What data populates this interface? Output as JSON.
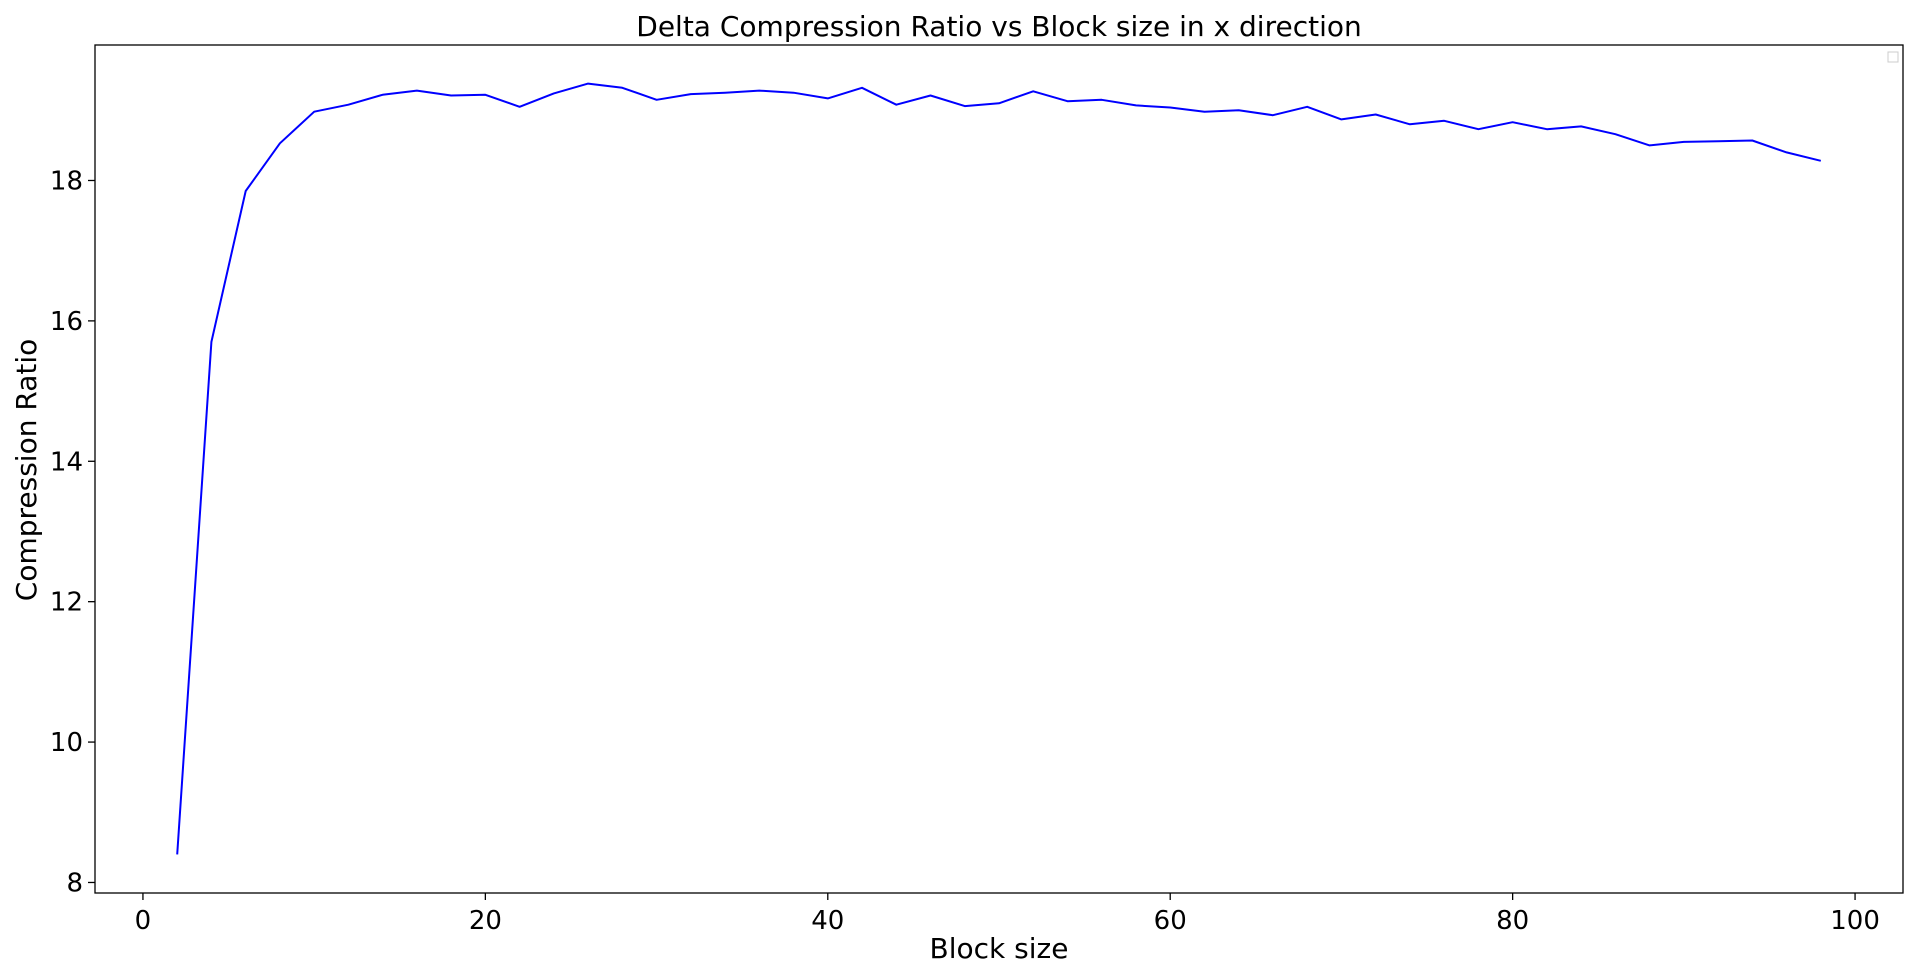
{
  "chart_data": {
    "type": "line",
    "title": "Delta Compression Ratio vs Block size in x direction",
    "xlabel": "Block size",
    "ylabel": "Compression Ratio",
    "xlim": [
      -2.8,
      102.8
    ],
    "ylim": [
      7.85,
      19.93
    ],
    "xticks": [
      0,
      20,
      40,
      60,
      80,
      100
    ],
    "yticks": [
      8,
      10,
      12,
      14,
      16,
      18
    ],
    "grid": false,
    "legend": "top-right",
    "series": [
      {
        "color": "#0000ff",
        "x": [
          2,
          4,
          6,
          8,
          10,
          12,
          14,
          16,
          18,
          20,
          22,
          24,
          26,
          28,
          30,
          32,
          34,
          36,
          38,
          40,
          42,
          44,
          46,
          48,
          50,
          52,
          54,
          56,
          58,
          60,
          62,
          64,
          66,
          68,
          70,
          72,
          74,
          76,
          78,
          80,
          82,
          84,
          86,
          88,
          90,
          92,
          94,
          96,
          98
        ],
        "y": [
          8.4,
          15.7,
          17.85,
          18.53,
          18.98,
          19.08,
          19.22,
          19.28,
          19.21,
          19.22,
          19.05,
          19.24,
          19.38,
          19.32,
          19.15,
          19.23,
          19.25,
          19.28,
          19.25,
          19.17,
          19.32,
          19.08,
          19.21,
          19.06,
          19.1,
          19.27,
          19.13,
          19.15,
          19.07,
          19.04,
          18.98,
          19.0,
          18.93,
          19.05,
          18.87,
          18.94,
          18.8,
          18.85,
          18.73,
          18.83,
          18.73,
          18.77,
          18.66,
          18.5,
          18.55,
          18.56,
          18.57,
          18.4,
          18.28
        ]
      }
    ]
  }
}
